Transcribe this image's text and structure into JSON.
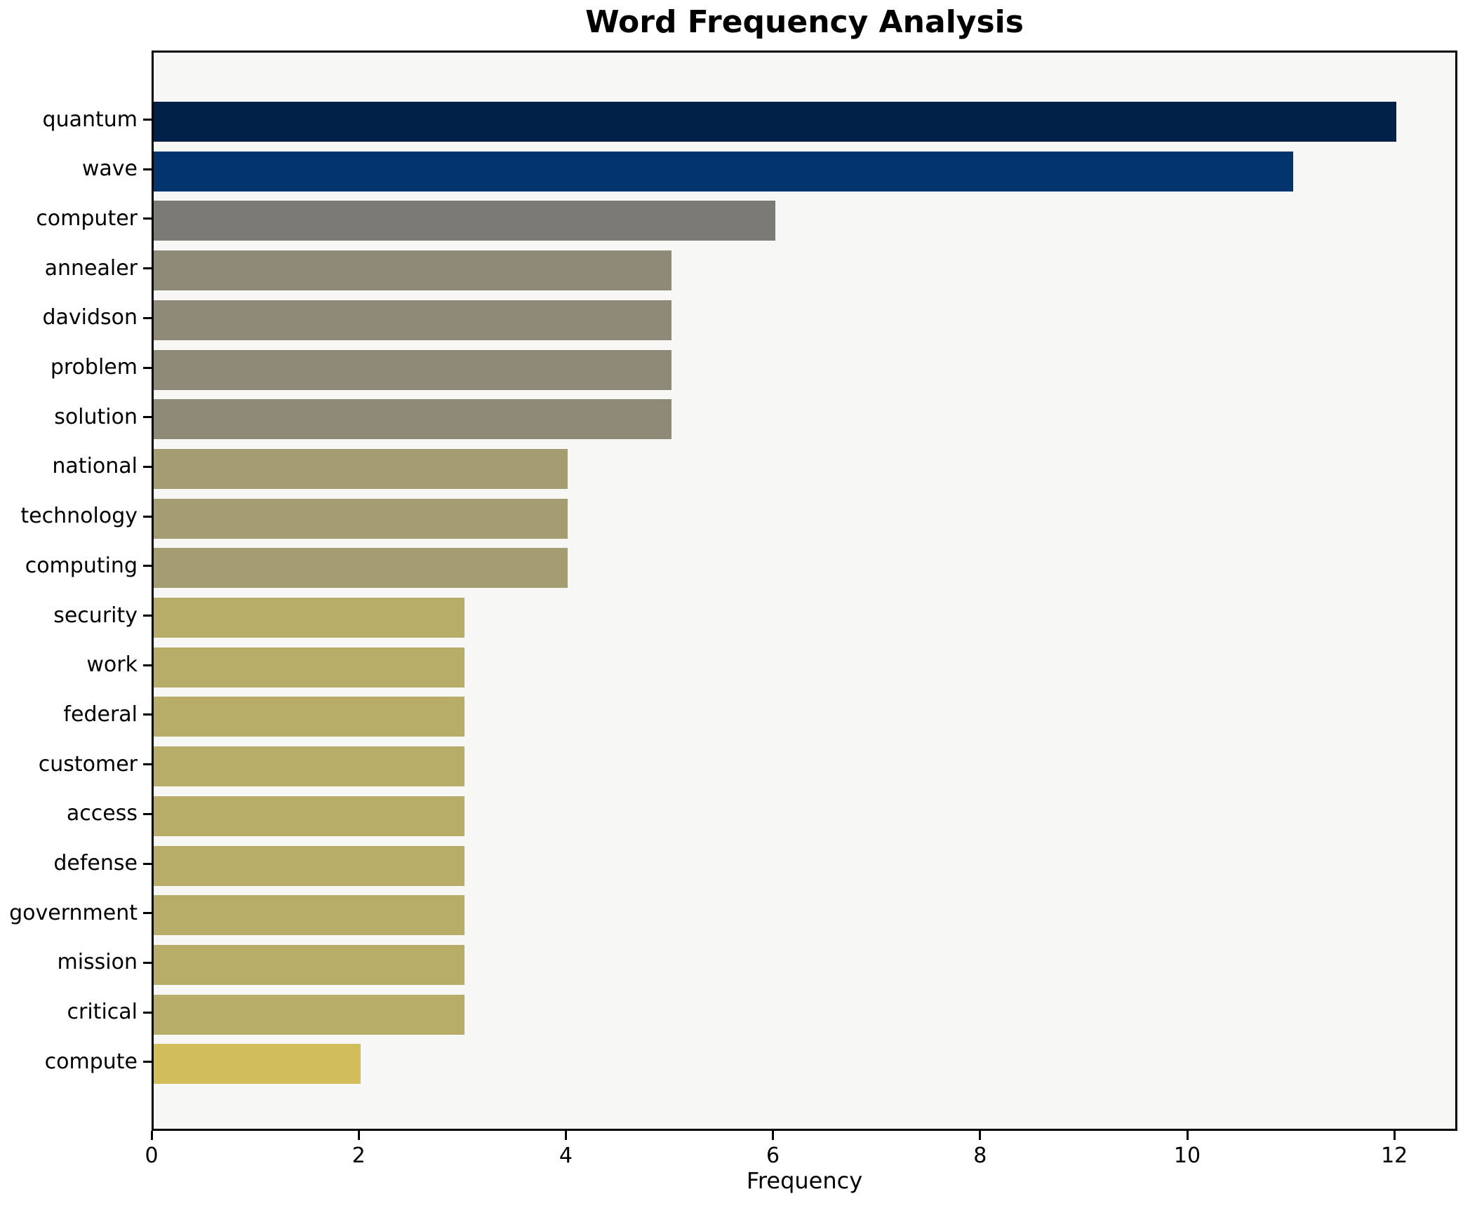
{
  "title": "Word Frequency Analysis",
  "xlabel": "Frequency",
  "chart_data": {
    "type": "bar",
    "orientation": "horizontal",
    "title": "Word Frequency Analysis",
    "xlabel": "Frequency",
    "ylabel": "",
    "categories": [
      "quantum",
      "wave",
      "computer",
      "annealer",
      "davidson",
      "problem",
      "solution",
      "national",
      "technology",
      "computing",
      "security",
      "work",
      "federal",
      "customer",
      "access",
      "defense",
      "government",
      "mission",
      "critical",
      "compute"
    ],
    "values": [
      12,
      11,
      6,
      5,
      5,
      5,
      5,
      4,
      4,
      4,
      3,
      3,
      3,
      3,
      3,
      3,
      3,
      3,
      3,
      2
    ],
    "bar_colors": [
      "#022149",
      "#04346e",
      "#7b7a74",
      "#8f8977",
      "#8f8977",
      "#8f8977",
      "#8f8977",
      "#a49d71",
      "#a49d71",
      "#a49d71",
      "#b8ac69",
      "#b8ac69",
      "#b8ac69",
      "#b8ac69",
      "#b8ac69",
      "#b8ac69",
      "#b8ac69",
      "#b8ac69",
      "#b8ac69",
      "#d2bd5b"
    ],
    "xticks": [
      "0",
      "2",
      "4",
      "6",
      "8",
      "10",
      "12"
    ],
    "xtick_values": [
      0,
      2,
      4,
      6,
      8,
      10,
      12
    ],
    "xlim": [
      0,
      12.6
    ],
    "grid": false,
    "legend": "none",
    "plot_background": "#f7f7f6",
    "figure_background": "#ffffff",
    "axis_color": "#000000"
  }
}
